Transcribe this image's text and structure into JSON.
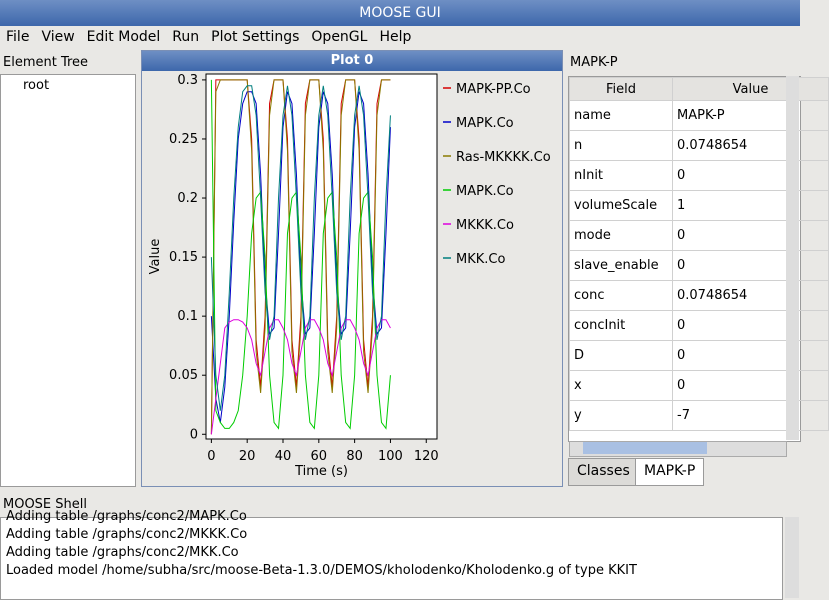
{
  "window": {
    "title": "MOOSE GUI",
    "menu": [
      "File",
      "View",
      "Edit Model",
      "Run",
      "Plot Settings",
      "OpenGL",
      "Help"
    ]
  },
  "element_tree": {
    "title": "Element Tree",
    "items": [
      "root"
    ]
  },
  "chart_data": {
    "type": "line",
    "title": "Plot 0",
    "xlabel": "Time (s)",
    "ylabel": "Value",
    "x": [
      0,
      2.5,
      5,
      7.5,
      10,
      12.5,
      15,
      17.5,
      20,
      22.5,
      25,
      27.5,
      30,
      32.5,
      35,
      37.5,
      40,
      42.5,
      45,
      47.5,
      50,
      52.5,
      55,
      57.5,
      60,
      62.5,
      65,
      67.5,
      70,
      72.5,
      75,
      77.5,
      80,
      82.5,
      85,
      87.5,
      90,
      92.5,
      95,
      97.5,
      100
    ],
    "series": [
      {
        "name": "MAPK-PP.Co",
        "color": "#d40000",
        "values": [
          0,
          0.3,
          0.3,
          0.3,
          0.3,
          0.3,
          0.3,
          0.3,
          0.3,
          0.25,
          0.08,
          0.04,
          0.1,
          0.28,
          0.3,
          0.3,
          0.3,
          0.25,
          0.08,
          0.04,
          0.1,
          0.28,
          0.3,
          0.3,
          0.3,
          0.25,
          0.08,
          0.04,
          0.1,
          0.28,
          0.3,
          0.3,
          0.3,
          0.25,
          0.08,
          0.04,
          0.1,
          0.28,
          0.3,
          0.3,
          0.3
        ]
      },
      {
        "name": "MAPK.Co",
        "color": "#0000c8",
        "values": [
          0.1,
          0.03,
          0.01,
          0.04,
          0.1,
          0.18,
          0.25,
          0.28,
          0.29,
          0.29,
          0.28,
          0.22,
          0.13,
          0.085,
          0.09,
          0.17,
          0.26,
          0.29,
          0.28,
          0.22,
          0.13,
          0.085,
          0.09,
          0.17,
          0.26,
          0.29,
          0.28,
          0.22,
          0.13,
          0.085,
          0.09,
          0.17,
          0.26,
          0.29,
          0.28,
          0.22,
          0.13,
          0.085,
          0.09,
          0.17,
          0.26
        ]
      },
      {
        "name": "Ras-MKKKK.Co",
        "color": "#8a7a00",
        "values": [
          0,
          0.29,
          0.3,
          0.3,
          0.3,
          0.3,
          0.3,
          0.3,
          0.3,
          0.24,
          0.07,
          0.035,
          0.09,
          0.27,
          0.3,
          0.3,
          0.3,
          0.24,
          0.07,
          0.035,
          0.09,
          0.27,
          0.3,
          0.3,
          0.3,
          0.24,
          0.07,
          0.035,
          0.09,
          0.27,
          0.3,
          0.3,
          0.3,
          0.24,
          0.07,
          0.035,
          0.09,
          0.27,
          0.3,
          0.3,
          0.3
        ]
      },
      {
        "name": "MAPK.Co",
        "color": "#00cc00",
        "values": [
          0.3,
          0.02,
          0.01,
          0.005,
          0.005,
          0.01,
          0.02,
          0.05,
          0.1,
          0.17,
          0.2,
          0.205,
          0.15,
          0.05,
          0.01,
          0.005,
          0.05,
          0.17,
          0.2,
          0.205,
          0.15,
          0.05,
          0.01,
          0.005,
          0.05,
          0.17,
          0.2,
          0.205,
          0.15,
          0.05,
          0.01,
          0.005,
          0.05,
          0.17,
          0.2,
          0.205,
          0.15,
          0.05,
          0.01,
          0.005,
          0.05
        ]
      },
      {
        "name": "MKKK.Co",
        "color": "#dd00dd",
        "values": [
          0,
          0.03,
          0.06,
          0.09,
          0.095,
          0.097,
          0.097,
          0.095,
          0.09,
          0.08,
          0.06,
          0.05,
          0.07,
          0.09,
          0.097,
          0.097,
          0.09,
          0.08,
          0.06,
          0.05,
          0.07,
          0.09,
          0.097,
          0.097,
          0.09,
          0.08,
          0.06,
          0.05,
          0.07,
          0.09,
          0.097,
          0.097,
          0.09,
          0.08,
          0.06,
          0.05,
          0.07,
          0.09,
          0.097,
          0.097,
          0.09
        ]
      },
      {
        "name": "MKK.Co",
        "color": "#007f7f",
        "values": [
          0.15,
          0.05,
          0.02,
          0.05,
          0.12,
          0.2,
          0.26,
          0.29,
          0.295,
          0.295,
          0.27,
          0.2,
          0.12,
          0.08,
          0.1,
          0.2,
          0.27,
          0.295,
          0.27,
          0.2,
          0.12,
          0.08,
          0.1,
          0.2,
          0.27,
          0.295,
          0.27,
          0.2,
          0.12,
          0.08,
          0.1,
          0.2,
          0.27,
          0.295,
          0.27,
          0.2,
          0.12,
          0.08,
          0.1,
          0.2,
          0.27
        ]
      }
    ],
    "xlim": [
      -3,
      126
    ],
    "ylim": [
      -0.004,
      0.305
    ],
    "xticks": [
      0,
      20,
      40,
      60,
      80,
      100,
      120
    ],
    "yticks": [
      0,
      0.05,
      0.1,
      0.15,
      0.2,
      0.25,
      0.3
    ]
  },
  "properties": {
    "title": "MAPK-P",
    "headers": [
      "Field",
      "Value"
    ],
    "rows": [
      [
        "name",
        "MAPK-P"
      ],
      [
        "n",
        "0.0748654"
      ],
      [
        "nInit",
        "0"
      ],
      [
        "volumeScale",
        "1"
      ],
      [
        "mode",
        "0"
      ],
      [
        "slave_enable",
        "0"
      ],
      [
        "conc",
        "0.0748654"
      ],
      [
        "concInit",
        "0"
      ],
      [
        "D",
        "0"
      ],
      [
        "x",
        "0"
      ],
      [
        "y",
        "-7"
      ]
    ],
    "tabs": [
      "Classes",
      "MAPK-P"
    ]
  },
  "shell": {
    "title": "MOOSE Shell",
    "lines": [
      "Adding table  /graphs/conc2/MAPK.Co",
      "Adding table  /graphs/conc2/MKKK.Co",
      "Adding table  /graphs/conc2/MKK.Co",
      "Loaded model /home/subha/src/moose-Beta-1.3.0/DEMOS/kholodenko/Kholodenko.g of type KKIT"
    ]
  }
}
